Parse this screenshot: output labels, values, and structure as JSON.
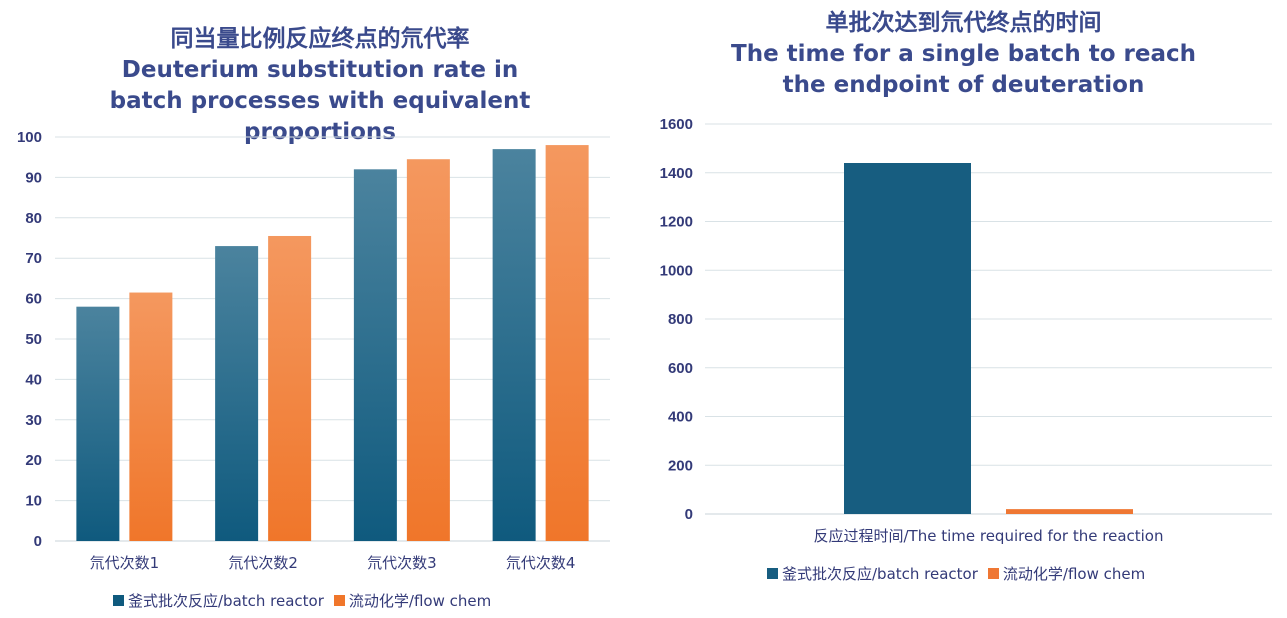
{
  "chart_data": [
    {
      "type": "bar",
      "title_zh": "同当量比例反应终点的氘代率",
      "title_en": "Deuterium substitution rate in batch processes with equivalent proportions",
      "categories": [
        "氘代次数1",
        "氘代次数2",
        "氘代次数3",
        "氘代次数4"
      ],
      "series": [
        {
          "name": "釜式批次反应/batch reactor",
          "values": [
            58,
            73,
            92,
            97
          ],
          "color": "#0f5a7e"
        },
        {
          "name": "流动化学/flow chem",
          "values": [
            61.5,
            75.5,
            94.5,
            98
          ],
          "color": "#f0762a"
        }
      ],
      "yticks": [
        0,
        10,
        20,
        30,
        40,
        50,
        60,
        70,
        80,
        90,
        100
      ],
      "ylim": [
        0,
        100
      ],
      "grid": true,
      "legend": "bottom"
    },
    {
      "type": "bar",
      "title_zh": "单批次达到氘代终点的时间",
      "title_en": "The time for a single batch to reach the endpoint of deuteration",
      "categories": [
        "反应过程时间/The time required for the reaction"
      ],
      "series": [
        {
          "name": "釜式批次反应/batch reactor",
          "values": [
            1440
          ],
          "color": "#175d80"
        },
        {
          "name": "流动化学/flow chem",
          "values": [
            20
          ],
          "color": "#ef7733"
        }
      ],
      "yticks": [
        0,
        200,
        400,
        600,
        800,
        1000,
        1200,
        1400,
        1600
      ],
      "ylim": [
        0,
        1600
      ],
      "grid": true,
      "legend": "bottom"
    }
  ]
}
